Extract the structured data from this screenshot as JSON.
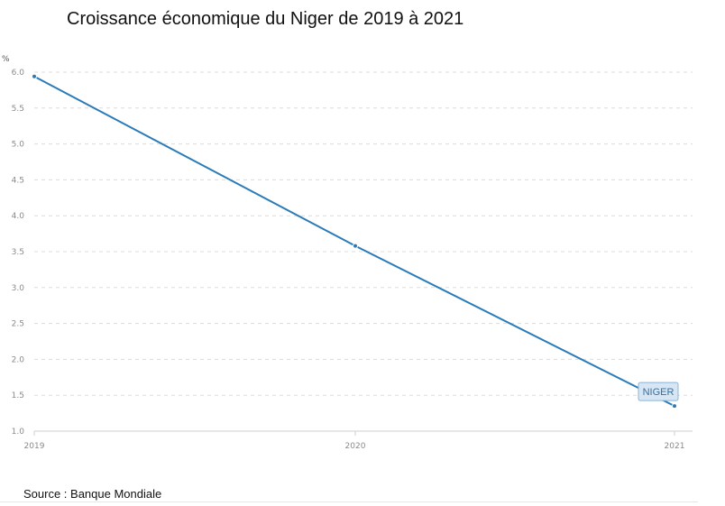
{
  "chart_data": {
    "type": "line",
    "title": "Croissance économique du Niger de 2019 à 2021",
    "ylabel": "%",
    "xlabel": "",
    "x": [
      "2019",
      "2020",
      "2021"
    ],
    "ylim": [
      1.0,
      6.0
    ],
    "yticks": [
      "6.0",
      "5.5",
      "5.0",
      "4.5",
      "4.0",
      "3.5",
      "3.0",
      "2.5",
      "2.0",
      "1.5",
      "1.0"
    ],
    "series": [
      {
        "name": "NIGER",
        "values": [
          5.94,
          3.58,
          1.35
        ]
      }
    ],
    "grid": true,
    "colors": {
      "line": "#2b7bb9",
      "grid": "#dcdcdc",
      "label_bg": "#d6e6f4",
      "label_border": "#8db4d6",
      "label_text": "#3b6f9a"
    }
  },
  "footer": {
    "source": "Source : Banque Mondiale"
  }
}
